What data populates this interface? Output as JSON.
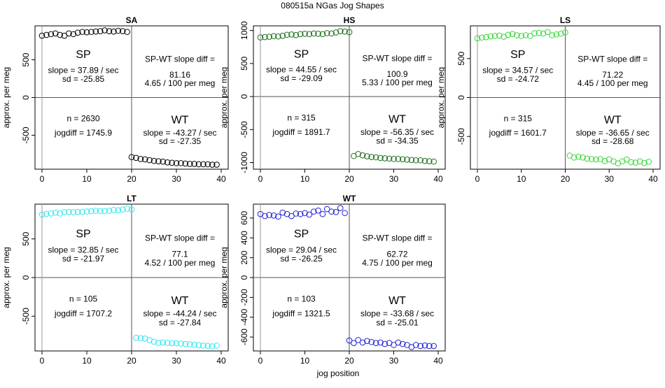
{
  "page": {
    "title": "080515a   NGas Jog Shapes",
    "xlabel": "jog position"
  },
  "chart_data": [
    {
      "type": "scatter",
      "title": "SA",
      "color": "#000000",
      "xlabel": "jog position",
      "ylabel": "approx. per meg",
      "xlim": [
        0,
        40
      ],
      "ylim": [
        -950,
        950
      ],
      "xticks": [
        0,
        10,
        20,
        30,
        40
      ],
      "yticks": [
        -500,
        0,
        500
      ],
      "series": [
        {
          "x": [
            0,
            1,
            2,
            3,
            4,
            5,
            6,
            7,
            8,
            9,
            10,
            11,
            12,
            13,
            14,
            15,
            16,
            17,
            18,
            19,
            20,
            21,
            22,
            23,
            24,
            25,
            26,
            27,
            28,
            29,
            30,
            31,
            32,
            33,
            34,
            35,
            36,
            37,
            38,
            39
          ],
          "values": [
            820,
            830,
            840,
            850,
            830,
            820,
            850,
            840,
            860,
            870,
            865,
            870,
            875,
            880,
            890,
            880,
            875,
            885,
            880,
            870,
            -790,
            -800,
            -815,
            -820,
            -830,
            -840,
            -845,
            -850,
            -860,
            -865,
            -870,
            -870,
            -875,
            -880,
            -880,
            -885,
            -885,
            -885,
            -890,
            -890
          ]
        }
      ],
      "annotations": {
        "sp_label": "SP",
        "sp_slope": "slope = 37.89 / sec",
        "sp_sd": "sd = -25.85",
        "diff_label": "SP-WT slope diff =",
        "diff_value": "81.16",
        "diff_rate": "4.65 / 100 per meg",
        "n": "n = 2630",
        "jogdiff": "jogdiff = 1745.9",
        "wt_label": "WT",
        "wt_slope": "slope = -43.27 / sec",
        "wt_sd": "sd = -27.35"
      }
    },
    {
      "type": "scatter",
      "title": "HS",
      "color": "#1e6e1e",
      "xlabel": "jog position",
      "ylabel": "approx. per meg",
      "xlim": [
        0,
        40
      ],
      "ylim": [
        -1100,
        1070
      ],
      "xticks": [
        0,
        10,
        20,
        30,
        40
      ],
      "yticks": [
        -1000,
        -500,
        0,
        500,
        1000
      ],
      "series": [
        {
          "x": [
            0,
            1,
            2,
            3,
            4,
            5,
            6,
            7,
            8,
            9,
            10,
            11,
            12,
            13,
            14,
            15,
            16,
            17,
            18,
            19,
            20,
            21,
            22,
            23,
            24,
            25,
            26,
            27,
            28,
            29,
            30,
            31,
            32,
            33,
            34,
            35,
            36,
            37,
            38,
            39
          ],
          "values": [
            895,
            900,
            905,
            915,
            910,
            920,
            935,
            940,
            930,
            945,
            950,
            945,
            955,
            950,
            945,
            960,
            955,
            970,
            990,
            985,
            975,
            -900,
            -870,
            -890,
            -905,
            -915,
            -920,
            -930,
            -935,
            -940,
            -945,
            -945,
            -950,
            -955,
            -960,
            -965,
            -965,
            -975,
            -980,
            -985
          ]
        }
      ],
      "annotations": {
        "sp_label": "SP",
        "sp_slope": "slope = 44.55 / sec",
        "sp_sd": "sd = -29.09",
        "diff_label": "SP-WT slope diff =",
        "diff_value": "100.9",
        "diff_rate": "5.33 / 100 per meg",
        "n": "n = 315",
        "jogdiff": "jogdiff = 1891.7",
        "wt_label": "WT",
        "wt_slope": "slope = -56.35 / sec",
        "wt_sd": "sd = -34.35"
      }
    },
    {
      "type": "scatter",
      "title": "LS",
      "color": "#3ad63a",
      "xlabel": "jog position",
      "ylabel": "approx. per meg",
      "xlim": [
        0,
        40
      ],
      "ylim": [
        -920,
        920
      ],
      "xticks": [
        0,
        10,
        20,
        30,
        40
      ],
      "yticks": [
        -500,
        0,
        500
      ],
      "series": [
        {
          "x": [
            0,
            1,
            2,
            3,
            4,
            5,
            6,
            7,
            8,
            9,
            10,
            11,
            12,
            13,
            14,
            15,
            16,
            17,
            18,
            19,
            20,
            21,
            22,
            23,
            24,
            25,
            26,
            27,
            28,
            29,
            30,
            31,
            32,
            33,
            34,
            35,
            36,
            37,
            38,
            39
          ],
          "values": [
            760,
            770,
            775,
            785,
            790,
            795,
            780,
            805,
            815,
            800,
            790,
            800,
            790,
            825,
            830,
            820,
            840,
            800,
            810,
            820,
            835,
            -745,
            -770,
            -760,
            -770,
            -785,
            -790,
            -795,
            -790,
            -815,
            -795,
            -820,
            -845,
            -820,
            -795,
            -830,
            -835,
            -820,
            -840,
            -825
          ]
        }
      ],
      "annotations": {
        "sp_label": "SP",
        "sp_slope": "slope = 34.57 / sec",
        "sp_sd": "sd = -24.72",
        "diff_label": "SP-WT slope diff =",
        "diff_value": "71.22",
        "diff_rate": "4.45 / 100 per meg",
        "n": "n = 315",
        "jogdiff": "jogdiff = 1601.7",
        "wt_label": "WT",
        "wt_slope": "slope = -36.65 / sec",
        "wt_sd": "sd = -28.68"
      }
    },
    {
      "type": "scatter",
      "title": "LT",
      "color": "#33e6f0",
      "xlabel": "jog position",
      "ylabel": "approx. per meg",
      "xlim": [
        0,
        40
      ],
      "ylim": [
        -950,
        950
      ],
      "xticks": [
        0,
        10,
        20,
        30,
        40
      ],
      "yticks": [
        -500,
        0,
        500
      ],
      "series": [
        {
          "x": [
            0,
            1,
            2,
            3,
            4,
            5,
            6,
            7,
            8,
            9,
            10,
            11,
            12,
            13,
            14,
            15,
            16,
            17,
            18,
            19,
            20,
            21,
            22,
            23,
            24,
            25,
            26,
            27,
            28,
            29,
            30,
            31,
            32,
            33,
            34,
            35,
            36,
            37,
            38,
            39
          ],
          "values": [
            815,
            825,
            830,
            840,
            830,
            845,
            850,
            845,
            850,
            850,
            855,
            860,
            865,
            860,
            860,
            865,
            875,
            870,
            880,
            890,
            880,
            -780,
            -785,
            -790,
            -810,
            -830,
            -845,
            -840,
            -845,
            -850,
            -850,
            -855,
            -860,
            -865,
            -870,
            -875,
            -880,
            -885,
            -890,
            -880
          ]
        }
      ],
      "annotations": {
        "sp_label": "SP",
        "sp_slope": "slope = 32.85 / sec",
        "sp_sd": "sd = -21.97",
        "diff_label": "SP-WT slope diff =",
        "diff_value": "77.1",
        "diff_rate": "4.52 / 100 per meg",
        "n": "n = 105",
        "jogdiff": "jogdiff = 1707.2",
        "wt_label": "WT",
        "wt_slope": "slope = -44.24 / sec",
        "wt_sd": "sd = -27.84"
      }
    },
    {
      "type": "scatter",
      "title": "WT",
      "color": "#2222d8",
      "xlabel": "jog position",
      "ylabel": "approx. per meg",
      "xlim": [
        0,
        40
      ],
      "ylim": [
        -740,
        740
      ],
      "xticks": [
        0,
        10,
        20,
        30,
        40
      ],
      "yticks": [
        -600,
        -400,
        -200,
        0,
        200,
        400,
        600
      ],
      "series": [
        {
          "x": [
            0,
            1,
            2,
            3,
            4,
            5,
            6,
            7,
            8,
            9,
            10,
            11,
            12,
            13,
            14,
            15,
            16,
            17,
            18,
            19,
            20,
            21,
            22,
            23,
            24,
            25,
            26,
            27,
            28,
            29,
            30,
            31,
            32,
            33,
            34,
            35,
            36,
            37,
            38,
            39
          ],
          "values": [
            640,
            620,
            630,
            625,
            615,
            655,
            640,
            620,
            645,
            640,
            650,
            635,
            665,
            675,
            640,
            690,
            665,
            660,
            700,
            650,
            -635,
            -660,
            -630,
            -655,
            -640,
            -650,
            -660,
            -655,
            -670,
            -660,
            -680,
            -655,
            -670,
            -680,
            -700,
            -680,
            -690,
            -685,
            -690,
            -690
          ]
        }
      ],
      "annotations": {
        "sp_label": "SP",
        "sp_slope": "slope = 29.04 / sec",
        "sp_sd": "sd = -26.25",
        "diff_label": "SP-WT slope diff =",
        "diff_value": "62.72",
        "diff_rate": "4.75 / 100 per meg",
        "n": "n = 103",
        "jogdiff": "jogdiff = 1321.5",
        "wt_label": "WT",
        "wt_slope": "slope = -33.68 / sec",
        "wt_sd": "sd = -25.01"
      }
    }
  ]
}
